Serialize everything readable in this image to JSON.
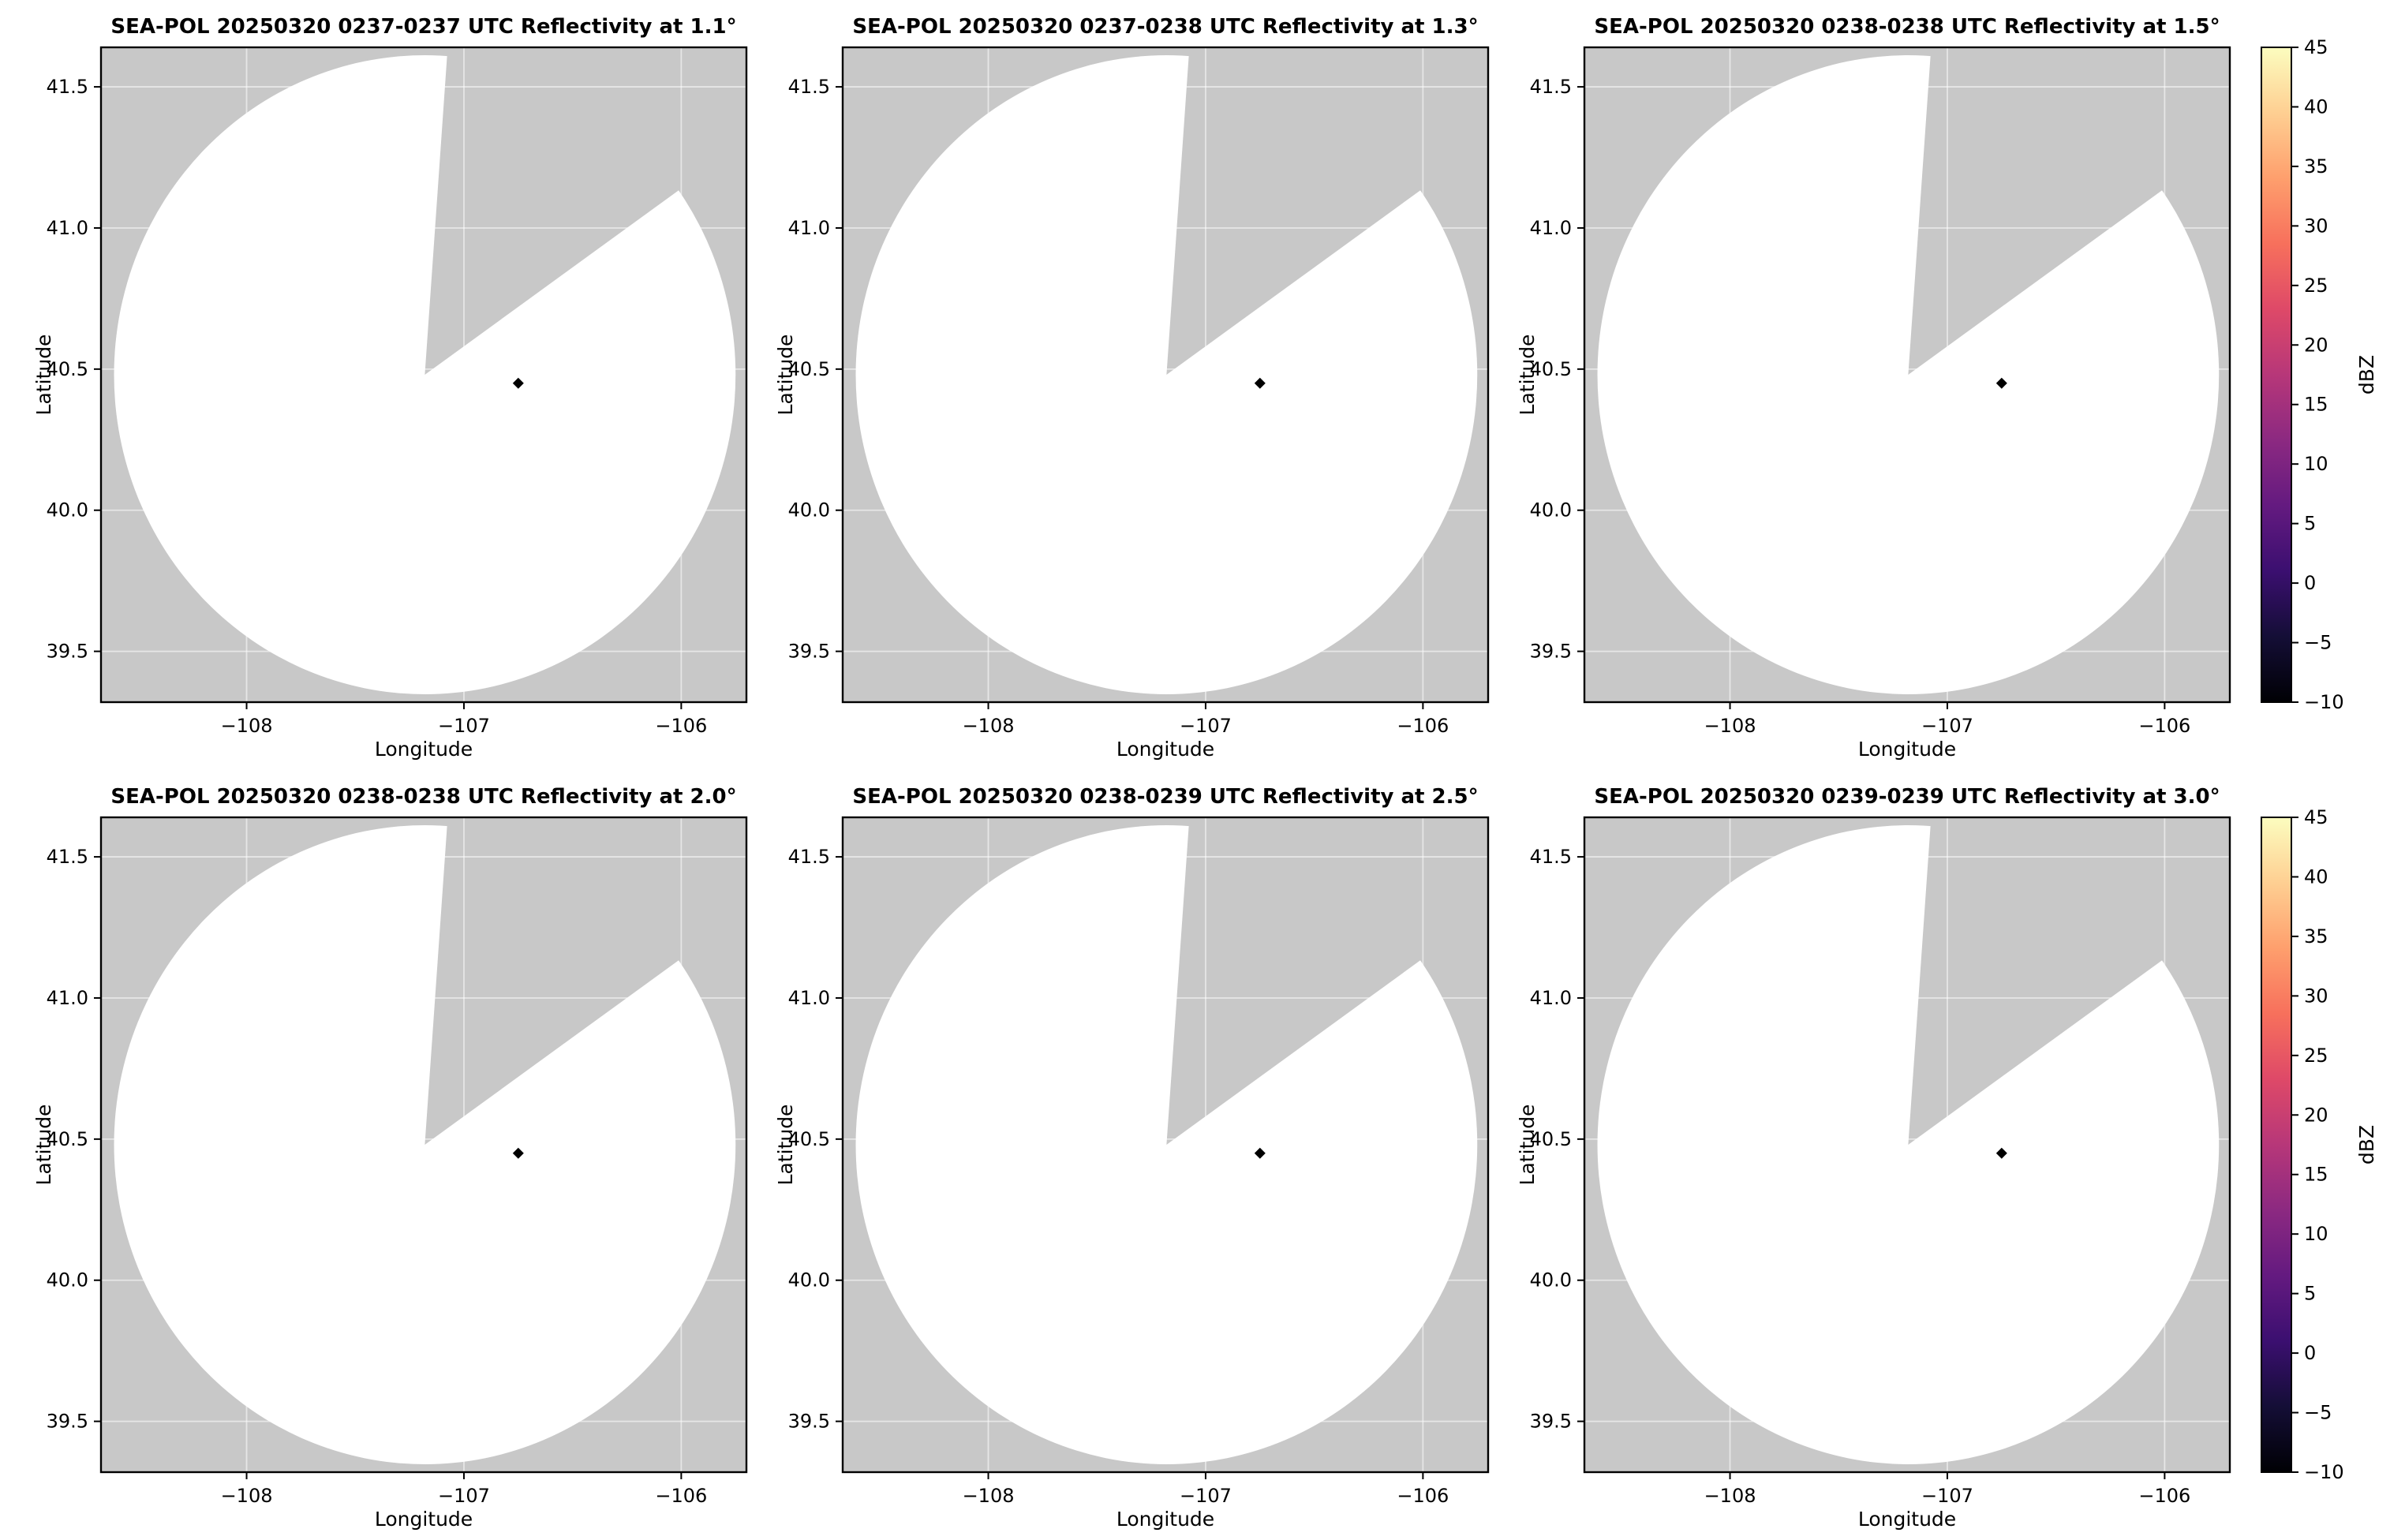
{
  "figure": {
    "background": "#ffffff",
    "layout": "2 rows x 3 columns of radar PPI panels, one shared colorbar per row"
  },
  "chart_data": {
    "type": "heatmap",
    "subtype": "radar-ppi-reflectivity",
    "rows": 2,
    "cols": 3,
    "panels": [
      {
        "title": "SEA-POL 20250320 0237-0237 UTC Reflectivity at 1.1°",
        "elevation_deg": "1.1"
      },
      {
        "title": "SEA-POL 20250320 0237-0238 UTC Reflectivity at 1.3°",
        "elevation_deg": "1.3"
      },
      {
        "title": "SEA-POL 20250320 0238-0238 UTC Reflectivity at 1.5°",
        "elevation_deg": "1.5"
      },
      {
        "title": "SEA-POL 20250320 0238-0238 UTC Reflectivity at 2.0°",
        "elevation_deg": "2.0"
      },
      {
        "title": "SEA-POL 20250320 0238-0239 UTC Reflectivity at 2.5°",
        "elevation_deg": "2.5"
      },
      {
        "title": "SEA-POL 20250320 0239-0239 UTC Reflectivity at 3.0°",
        "elevation_deg": "3.0"
      }
    ],
    "axes": {
      "xlabel": "Longitude",
      "ylabel": "Latitude",
      "xlim": [
        -108.67,
        -105.7
      ],
      "ylim": [
        39.32,
        41.64
      ],
      "xticks": [
        {
          "value": -108,
          "label": "−108"
        },
        {
          "value": -107,
          "label": "−107"
        },
        {
          "value": -106,
          "label": "−106"
        }
      ],
      "yticks": [
        {
          "value": 39.5,
          "label": "39.5"
        },
        {
          "value": 40.0,
          "label": "40.0"
        },
        {
          "value": 40.5,
          "label": "40.5"
        },
        {
          "value": 41.0,
          "label": "41.0"
        },
        {
          "value": 41.5,
          "label": "41.5"
        }
      ],
      "grid": true,
      "grid_color": "#ffffff",
      "frame_color": "#000000",
      "background_outside_scan": "#c8c8c8",
      "scan_area_color": "#ffffff"
    },
    "radar": {
      "scan_center": {
        "lon": -107.18,
        "lat": 40.48
      },
      "scan_radius_deg": {
        "lon": 1.43,
        "lat": 1.132
      },
      "missing_sector_azimuth_deg": [
        4,
        54
      ],
      "echo_point": {
        "lon": -106.75,
        "lat": 40.45,
        "color": "#000000"
      }
    },
    "colorbar": {
      "label": "dBZ",
      "min": -10,
      "max": 45,
      "ticks": [
        {
          "value": 45,
          "label": "45"
        },
        {
          "value": 40,
          "label": "40"
        },
        {
          "value": 35,
          "label": "35"
        },
        {
          "value": 30,
          "label": "30"
        },
        {
          "value": 25,
          "label": "25"
        },
        {
          "value": 20,
          "label": "20"
        },
        {
          "value": 15,
          "label": "15"
        },
        {
          "value": 10,
          "label": "10"
        },
        {
          "value": 5,
          "label": "5"
        },
        {
          "value": 0,
          "label": "0"
        },
        {
          "value": -5,
          "label": "−5"
        },
        {
          "value": -10,
          "label": "−10"
        }
      ],
      "gradient_stops": [
        {
          "value": -10.0,
          "color": "#000004"
        },
        {
          "value": -4.5,
          "color": "#140e36"
        },
        {
          "value": 1.0,
          "color": "#3b0f70"
        },
        {
          "value": 6.5,
          "color": "#641a80"
        },
        {
          "value": 12.0,
          "color": "#8c2981"
        },
        {
          "value": 17.5,
          "color": "#b73779"
        },
        {
          "value": 23.0,
          "color": "#de4968"
        },
        {
          "value": 28.5,
          "color": "#f7705c"
        },
        {
          "value": 34.0,
          "color": "#fe9f6d"
        },
        {
          "value": 39.5,
          "color": "#fecf92"
        },
        {
          "value": 45.0,
          "color": "#fcfdbf"
        }
      ]
    }
  }
}
